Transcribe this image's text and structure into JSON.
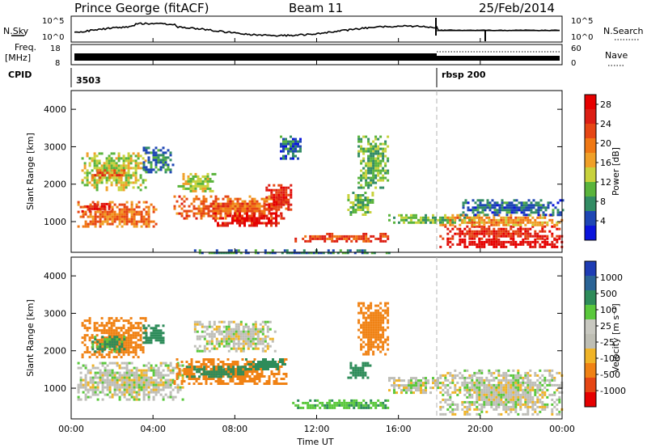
{
  "header": {
    "station": "Prince George (fitACF)",
    "beam": "Beam 11",
    "date": "25/Feb/2014"
  },
  "noise_panel": {
    "left_label": "N.Sky",
    "left_ticks": [
      "10^5",
      "10^0"
    ],
    "right_label": "N.Search",
    "right_ticks": [
      "10^5",
      "10^0"
    ]
  },
  "freq_panel": {
    "left_label_1": "Freq.",
    "left_label_2": "[MHz]",
    "left_ticks": [
      "18",
      "8"
    ],
    "right_label": "Nave",
    "right_ticks": [
      "60",
      "0"
    ]
  },
  "cpid_panel": {
    "label": "CPID",
    "programs": [
      "3503",
      "rbsp 200"
    ]
  },
  "colors": {
    "power_scale": [
      "#0a14dc",
      "#1e46b4",
      "#328c64",
      "#5ab43c",
      "#c8d23c",
      "#f0a028",
      "#f07814",
      "#e64614",
      "#dc1e14",
      "#e60000"
    ],
    "velocity_scale": [
      "#1e3cb4",
      "#2a6496",
      "#2e8c5a",
      "#5ac83c",
      "#c8c8c0",
      "#bebeb4",
      "#f0b428",
      "#f08214",
      "#e64614",
      "#e60000"
    ],
    "ground_scatter": "#bebeb8"
  },
  "chart_data": [
    {
      "type": "heatmap",
      "panel": "power",
      "xlabel": "",
      "ylabel": "Slant Range [km]",
      "x_ticks": [
        "00:00",
        "04:00",
        "08:00",
        "12:00",
        "16:00",
        "20:00",
        "00:00"
      ],
      "y_ticks": [
        "1000",
        "2000",
        "3000",
        "4000"
      ],
      "xlim_hours": [
        0,
        24
      ],
      "ylim_km": [
        180,
        4500
      ],
      "colorbar_label": "Power [dB]",
      "colorbar_ticks": [
        "4",
        "8",
        "12",
        "16",
        "20",
        "24",
        "28"
      ],
      "colorbar_range": [
        0,
        30
      ],
      "regions": [
        {
          "t": [
            0.3,
            4.2
          ],
          "r": [
            850,
            1550
          ],
          "v": 20
        },
        {
          "t": [
            0.5,
            2.0
          ],
          "r": [
            1300,
            1500
          ],
          "v": 26
        },
        {
          "t": [
            0.5,
            3.6
          ],
          "r": [
            1850,
            2850
          ],
          "v": 13
        },
        {
          "t": [
            1.0,
            2.6
          ],
          "r": [
            2200,
            2400
          ],
          "v": 21
        },
        {
          "t": [
            3.5,
            5.0
          ],
          "r": [
            2300,
            3000
          ],
          "v": 7
        },
        {
          "t": [
            5.0,
            10.5
          ],
          "r": [
            1100,
            1700
          ],
          "v": 21
        },
        {
          "t": [
            5.2,
            7.0
          ],
          "r": [
            1800,
            2300
          ],
          "v": 13
        },
        {
          "t": [
            7.0,
            10.3
          ],
          "r": [
            900,
            1250
          ],
          "v": 27
        },
        {
          "t": [
            9.5,
            10.8
          ],
          "r": [
            1300,
            2000
          ],
          "v": 25
        },
        {
          "t": [
            10.2,
            11.2
          ],
          "r": [
            2700,
            3300
          ],
          "v": 6
        },
        {
          "t": [
            6.0,
            15.5
          ],
          "r": [
            160,
            260
          ],
          "v": 7
        },
        {
          "t": [
            10.8,
            15.5
          ],
          "r": [
            500,
            700
          ],
          "v": 23
        },
        {
          "t": [
            13.5,
            14.8
          ],
          "r": [
            1200,
            1800
          ],
          "v": 11
        },
        {
          "t": [
            14.0,
            15.5
          ],
          "r": [
            1900,
            3300
          ],
          "v": 10
        },
        {
          "t": [
            15.5,
            20.0
          ],
          "r": [
            950,
            1200
          ],
          "v": 11
        },
        {
          "t": [
            18.0,
            24.0
          ],
          "r": [
            350,
            550
          ],
          "v": 28
        },
        {
          "t": [
            18.0,
            24.0
          ],
          "r": [
            550,
            900
          ],
          "v": 25
        },
        {
          "t": [
            18.0,
            24.0
          ],
          "r": [
            900,
            1200
          ],
          "v": 18
        },
        {
          "t": [
            19.0,
            24.0
          ],
          "r": [
            1200,
            1600
          ],
          "v": 6
        }
      ]
    },
    {
      "type": "heatmap",
      "panel": "velocity",
      "xlabel": "Time UT",
      "ylabel": "Slant Range [km]",
      "x_ticks": [
        "00:00",
        "04:00",
        "08:00",
        "12:00",
        "16:00",
        "20:00",
        "00:00"
      ],
      "y_ticks": [
        "1000",
        "2000",
        "3000",
        "4000"
      ],
      "xlim_hours": [
        0,
        24
      ],
      "ylim_km": [
        180,
        4500
      ],
      "colorbar_label": "Velocity [m s⁻¹]",
      "colorbar_ticks": [
        "1000",
        "500",
        "100",
        "25",
        "-25",
        "-100",
        "-500",
        "-1000"
      ],
      "regions": [
        {
          "t": [
            0.3,
            5.5
          ],
          "r": [
            700,
            1700
          ],
          "v": 0
        },
        {
          "t": [
            0.5,
            3.6
          ],
          "r": [
            1800,
            2900
          ],
          "v": -150
        },
        {
          "t": [
            1.0,
            2.6
          ],
          "r": [
            2000,
            2400
          ],
          "v": 120
        },
        {
          "t": [
            3.5,
            4.5
          ],
          "r": [
            2200,
            2700
          ],
          "v": 150
        },
        {
          "t": [
            5.0,
            10.5
          ],
          "r": [
            1100,
            1800
          ],
          "v": -200
        },
        {
          "t": [
            5.5,
            8.5
          ],
          "r": [
            1300,
            1600
          ],
          "v": 150
        },
        {
          "t": [
            8.5,
            10.5
          ],
          "r": [
            1500,
            1800
          ],
          "v": 200
        },
        {
          "t": [
            6.0,
            10.0
          ],
          "r": [
            2000,
            2800
          ],
          "v": 0
        },
        {
          "t": [
            10.8,
            15.5
          ],
          "r": [
            450,
            700
          ],
          "v": 80
        },
        {
          "t": [
            13.5,
            14.6
          ],
          "r": [
            1300,
            1700
          ],
          "v": 300
        },
        {
          "t": [
            14.0,
            15.5
          ],
          "r": [
            1900,
            3300
          ],
          "v": -200
        },
        {
          "t": [
            15.5,
            18.0
          ],
          "r": [
            900,
            1300
          ],
          "v": 0
        },
        {
          "t": [
            18.0,
            24.0
          ],
          "r": [
            300,
            1500
          ],
          "v": 0
        }
      ]
    }
  ]
}
